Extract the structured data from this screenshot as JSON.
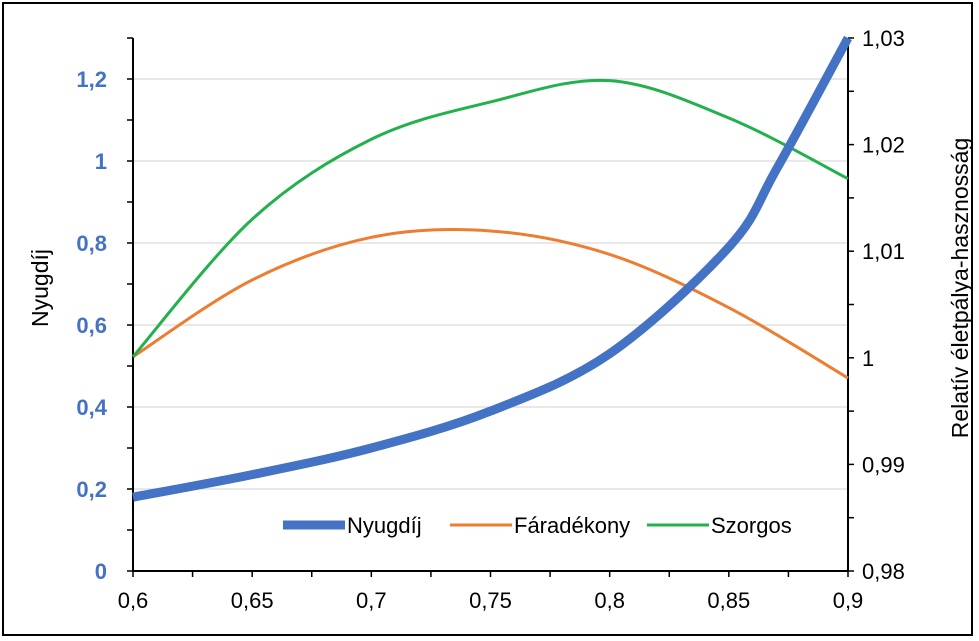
{
  "chart_data": {
    "type": "line",
    "ylabel": "Nyugdíj",
    "y2label": "Relatív életpálya-hasznosság",
    "xlim": [
      0.6,
      0.9
    ],
    "ylim": [
      0,
      1.3
    ],
    "y2lim": [
      0.98,
      1.03
    ],
    "x_ticks": [
      "0,6",
      "0,65",
      "0,7",
      "0,75",
      "0,8",
      "0,85",
      "0,9"
    ],
    "y_ticks": [
      "0",
      "0,2",
      "0,4",
      "0,6",
      "0,8",
      "1",
      "1,2"
    ],
    "y2_ticks": [
      "0,98",
      "0,99",
      "1",
      "1,01",
      "1,02",
      "1,03"
    ],
    "grid": true,
    "legend_position": "bottom-right",
    "series": [
      {
        "name": "Nyugdíj",
        "axis": "left",
        "color": "#4472C4",
        "x": [
          0.6,
          0.65,
          0.7,
          0.75,
          0.8,
          0.85,
          0.87,
          0.9
        ],
        "values": [
          0.18,
          0.235,
          0.3,
          0.39,
          0.53,
          0.79,
          0.98,
          1.3
        ]
      },
      {
        "name": "Fáradékony",
        "axis": "right",
        "color": "#ED7D31",
        "x": [
          0.6,
          0.65,
          0.7,
          0.75,
          0.8,
          0.85,
          0.9
        ],
        "values": [
          1.0001,
          1.0073,
          1.0113,
          1.0119,
          1.0097,
          1.0047,
          0.9981
        ]
      },
      {
        "name": "Szorgos",
        "axis": "right",
        "color": "#22B14C",
        "x": [
          0.6,
          0.65,
          0.7,
          0.75,
          0.8,
          0.85,
          0.9
        ],
        "values": [
          1.0001,
          1.013,
          1.0205,
          1.024,
          1.026,
          1.0225,
          1.0168
        ]
      }
    ]
  }
}
